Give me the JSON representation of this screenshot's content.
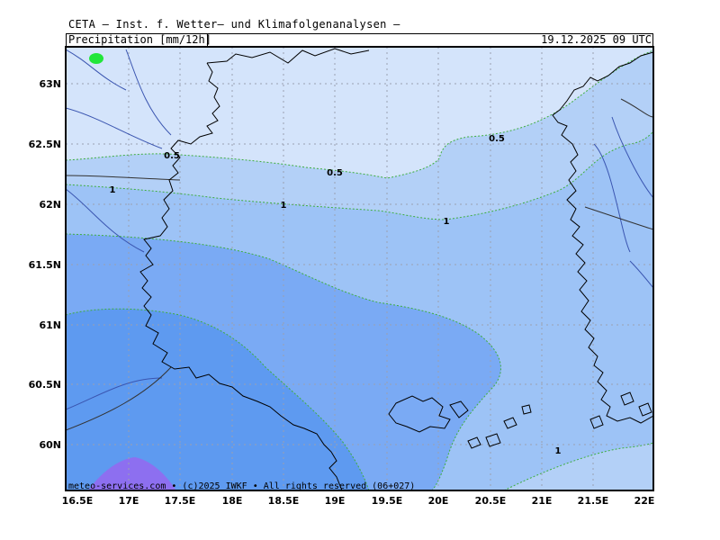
{
  "header": {
    "title": "CETA — Inst. f. Wetter— und Klimafolgenanalysen —",
    "parameter": "Precipitation [mm/12h]",
    "valid_time": "19.12.2025 09 UTC"
  },
  "map": {
    "lon_range": [
      16.5,
      22.0
    ],
    "lat_range": [
      59.7,
      63.3
    ],
    "lon_ticks": [
      "16.5E",
      "17E",
      "17.5E",
      "18E",
      "18.5E",
      "19E",
      "19.5E",
      "20E",
      "20.5E",
      "21E",
      "21.5E",
      "22E"
    ],
    "lat_ticks": [
      "63N",
      "62.5N",
      "62N",
      "61.5N",
      "61N",
      "60.5N",
      "60N"
    ],
    "contour_labels": [
      "0.5",
      "0.5",
      "0.5",
      "1",
      "1",
      "1",
      "1"
    ],
    "colors": {
      "lt_0_5": "#d4e4fb",
      "c0_5_1": "#b3d0f7",
      "c1_2": "#9dc3f6",
      "c2_5": "#7aaaf4",
      "c5_10": "#5e9af0",
      "c10plus": "#8d6ff0",
      "green_patch": "#22e63a",
      "contour": "#3fae3f"
    }
  },
  "footer": "meteo-services.com • (c)2025 IWKF • All rights reserved (06+027)"
}
